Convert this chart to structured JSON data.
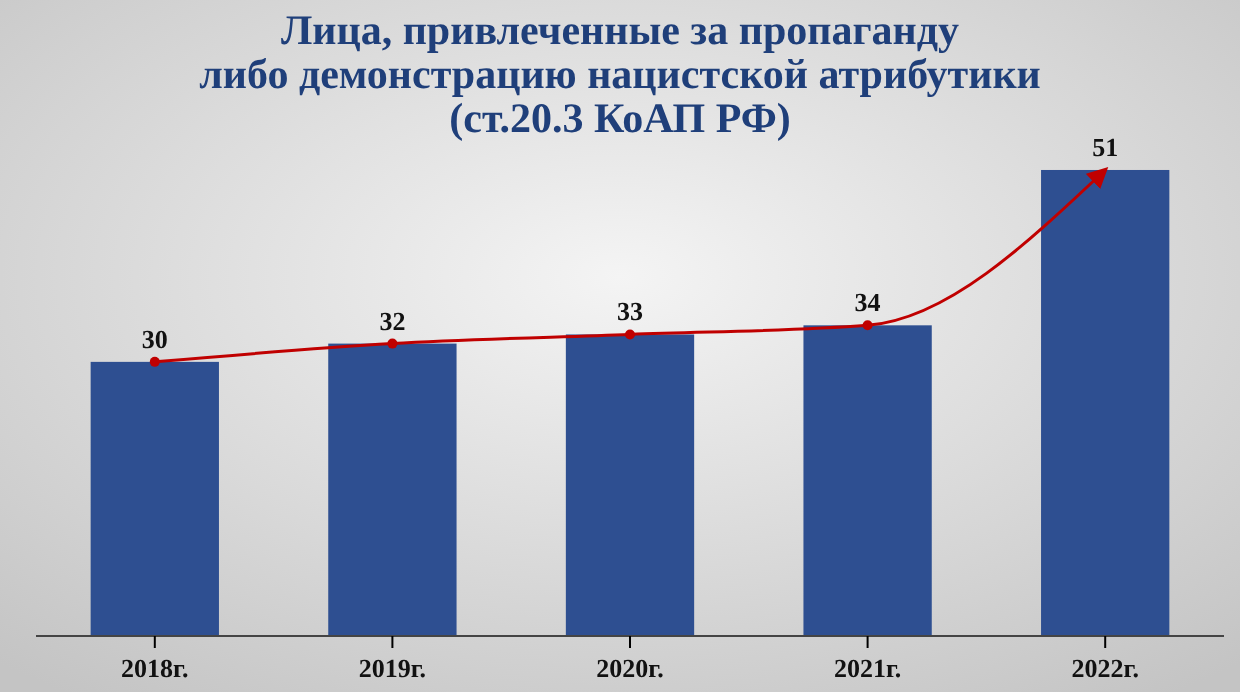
{
  "chart_data": {
    "type": "bar",
    "title": "Лица, привлеченные за пропаганду\nлибо демонстрацию нацистской атрибутики\n(ст.20.3 КоАП РФ)",
    "categories": [
      "2018г.",
      "2019г.",
      "2020г.",
      "2021г.",
      "2022г."
    ],
    "series": [
      {
        "color": "#2e4f91",
        "values": [
          30,
          32,
          33,
          34,
          51
        ],
        "value_labels": [
          "30",
          "32",
          "33",
          "34",
          "51"
        ]
      },
      {
        "type": "line",
        "color": "#c00000",
        "values": [
          30,
          32,
          33,
          34,
          51
        ],
        "marker": "circle"
      }
    ]
  }
}
